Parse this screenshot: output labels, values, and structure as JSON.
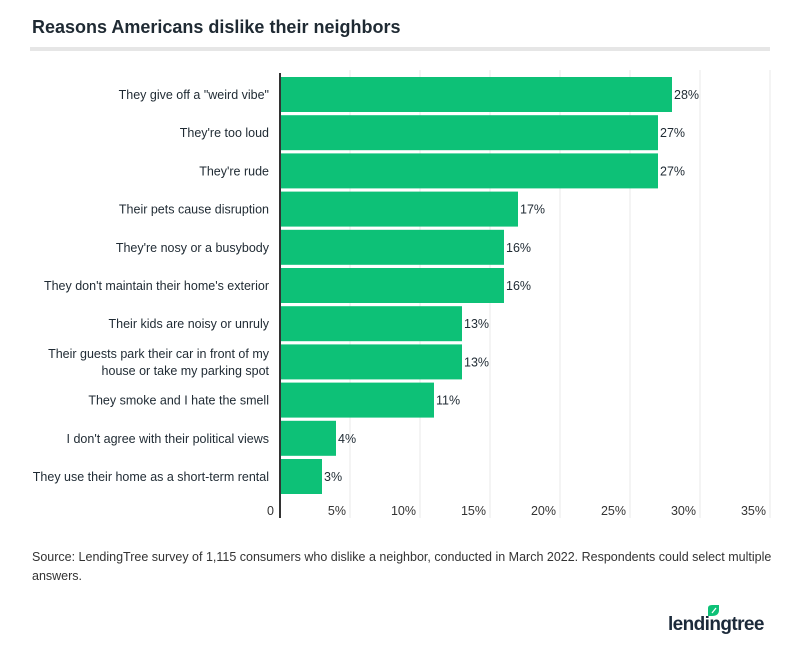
{
  "chart_data": {
    "type": "bar",
    "orientation": "horizontal",
    "title": "Reasons Americans dislike their neighbors",
    "categories": [
      "They give off a \"weird vibe\"",
      "They're too loud",
      "They're rude",
      "Their pets cause disruption",
      "They're nosy or a busybody",
      "They don't maintain their home's exterior",
      "Their kids are noisy or unruly",
      "Their guests park their car in front of my house or take my parking spot",
      "They smoke and I hate the smell",
      "I don't agree with their political views",
      "They use their home as a short-term rental"
    ],
    "category_lines": [
      [
        "They give off a \"weird vibe\""
      ],
      [
        "They're too loud"
      ],
      [
        "They're rude"
      ],
      [
        "Their pets cause disruption"
      ],
      [
        "They're nosy or a busybody"
      ],
      [
        "They don't maintain their home's exterior"
      ],
      [
        "Their kids are noisy or unruly"
      ],
      [
        "Their guests park their car in front of my",
        "house or take my parking spot"
      ],
      [
        "They smoke and I hate the smell"
      ],
      [
        "I don't agree with their political views"
      ],
      [
        "They use their home as a short-term rental"
      ]
    ],
    "values": [
      28,
      27,
      27,
      17,
      16,
      16,
      13,
      13,
      11,
      4,
      3
    ],
    "data_labels": [
      "28%",
      "27%",
      "27%",
      "17%",
      "16%",
      "16%",
      "13%",
      "13%",
      "11%",
      "4%",
      "3%"
    ],
    "xlim": [
      0,
      35
    ],
    "x_ticks": [
      0,
      5,
      10,
      15,
      20,
      25,
      30,
      35
    ],
    "x_tick_labels": [
      "0",
      "5%",
      "10%",
      "15%",
      "20%",
      "25%",
      "30%",
      "35%"
    ],
    "grid": "vertical",
    "bar_color": "#0dc177",
    "xlabel": "",
    "ylabel": ""
  },
  "source": "Source: LendingTree survey of 1,115 consumers who dislike a neighbor, conducted in March 2022. Respondents could select multiple answers.",
  "logo_text": "lendingtree",
  "colors": {
    "bar": "#0dc177",
    "logo_text": "#1c2a3a",
    "logo_leaf": "#0dc177"
  }
}
